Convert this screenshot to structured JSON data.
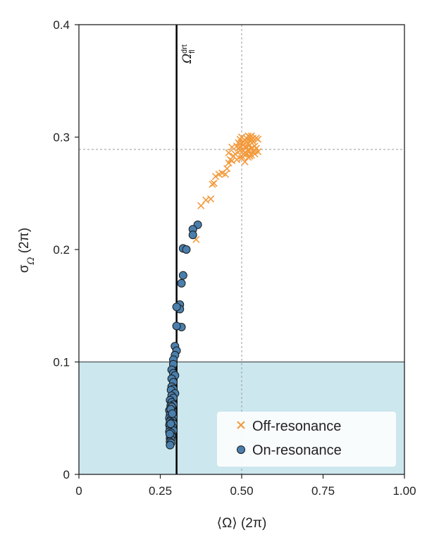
{
  "chart_data": {
    "type": "scatter",
    "xlabel": "⟨Ω⟩ (2π)",
    "ylabel_main": "σ",
    "ylabel_sub": "Ω",
    "ylabel_tail": " (2π)",
    "xlim": [
      0,
      1.0
    ],
    "ylim": [
      0,
      0.4
    ],
    "x_ticks": [
      0,
      0.25,
      0.5,
      0.75,
      1.0
    ],
    "x_tick_labels": [
      "0",
      "0.25",
      "0.50",
      "0.75",
      "1.00"
    ],
    "y_ticks": [
      0,
      0.1,
      0.2,
      0.3,
      0.4
    ],
    "y_tick_labels": [
      "0",
      "0.1",
      "0.2",
      "0.3",
      "0.4"
    ],
    "shaded_region": {
      "y_max": 0.1,
      "color": "#cce7ee"
    },
    "vertical_line": {
      "x": 0.3,
      "label_main": "Ω",
      "label_sup": "drt",
      "label_sub": "fl"
    },
    "reference_lines": {
      "x": 0.5,
      "y": 0.289
    },
    "legend_position": "bottom-right",
    "series": [
      {
        "name": "Off-resonance",
        "marker": "x",
        "color": "#f39a3c",
        "points": [
          [
            0.36,
            0.209
          ],
          [
            0.375,
            0.239
          ],
          [
            0.39,
            0.244
          ],
          [
            0.405,
            0.245
          ],
          [
            0.41,
            0.258
          ],
          [
            0.415,
            0.259
          ],
          [
            0.42,
            0.265
          ],
          [
            0.43,
            0.267
          ],
          [
            0.44,
            0.268
          ],
          [
            0.45,
            0.267
          ],
          [
            0.455,
            0.272
          ],
          [
            0.46,
            0.277
          ],
          [
            0.465,
            0.28
          ],
          [
            0.47,
            0.279
          ],
          [
            0.475,
            0.283
          ],
          [
            0.48,
            0.285
          ],
          [
            0.485,
            0.28
          ],
          [
            0.49,
            0.29
          ],
          [
            0.495,
            0.288
          ],
          [
            0.5,
            0.281
          ],
          [
            0.505,
            0.285
          ],
          [
            0.51,
            0.278
          ],
          [
            0.46,
            0.286
          ],
          [
            0.47,
            0.291
          ],
          [
            0.49,
            0.295
          ],
          [
            0.495,
            0.298
          ],
          [
            0.5,
            0.3
          ],
          [
            0.505,
            0.293
          ],
          [
            0.51,
            0.291
          ],
          [
            0.515,
            0.296
          ],
          [
            0.52,
            0.289
          ],
          [
            0.525,
            0.293
          ],
          [
            0.53,
            0.29
          ],
          [
            0.535,
            0.296
          ],
          [
            0.54,
            0.292
          ],
          [
            0.545,
            0.299
          ],
          [
            0.55,
            0.298
          ],
          [
            0.515,
            0.285
          ],
          [
            0.52,
            0.301
          ],
          [
            0.525,
            0.3
          ],
          [
            0.53,
            0.301
          ],
          [
            0.535,
            0.287
          ],
          [
            0.54,
            0.285
          ],
          [
            0.5,
            0.295
          ],
          [
            0.51,
            0.297
          ],
          [
            0.52,
            0.282
          ],
          [
            0.505,
            0.288
          ],
          [
            0.53,
            0.284
          ],
          [
            0.515,
            0.291
          ],
          [
            0.525,
            0.297
          ],
          [
            0.545,
            0.29
          ],
          [
            0.55,
            0.287
          ],
          [
            0.495,
            0.291
          ],
          [
            0.535,
            0.299
          ],
          [
            0.5,
            0.283
          ],
          [
            0.51,
            0.286
          ],
          [
            0.52,
            0.294
          ],
          [
            0.53,
            0.298
          ],
          [
            0.54,
            0.288
          ],
          [
            0.485,
            0.292
          ],
          [
            0.525,
            0.283
          ],
          [
            0.515,
            0.299
          ],
          [
            0.505,
            0.296
          ],
          [
            0.52,
            0.288
          ]
        ]
      },
      {
        "name": "On-resonance",
        "marker": "o",
        "color": "#4a7fad",
        "points": [
          [
            0.365,
            0.222
          ],
          [
            0.35,
            0.218
          ],
          [
            0.35,
            0.213
          ],
          [
            0.32,
            0.201
          ],
          [
            0.33,
            0.2
          ],
          [
            0.32,
            0.177
          ],
          [
            0.315,
            0.17
          ],
          [
            0.31,
            0.151
          ],
          [
            0.31,
            0.147
          ],
          [
            0.3,
            0.149
          ],
          [
            0.315,
            0.131
          ],
          [
            0.3,
            0.132
          ],
          [
            0.295,
            0.114
          ],
          [
            0.3,
            0.11
          ],
          [
            0.295,
            0.106
          ],
          [
            0.29,
            0.102
          ],
          [
            0.29,
            0.098
          ],
          [
            0.285,
            0.093
          ],
          [
            0.29,
            0.09
          ],
          [
            0.295,
            0.088
          ],
          [
            0.285,
            0.085
          ],
          [
            0.29,
            0.082
          ],
          [
            0.285,
            0.078
          ],
          [
            0.29,
            0.076
          ],
          [
            0.283,
            0.075
          ],
          [
            0.295,
            0.072
          ],
          [
            0.285,
            0.07
          ],
          [
            0.29,
            0.068
          ],
          [
            0.28,
            0.066
          ],
          [
            0.285,
            0.064
          ],
          [
            0.29,
            0.062
          ],
          [
            0.282,
            0.061
          ],
          [
            0.285,
            0.059
          ],
          [
            0.278,
            0.057
          ],
          [
            0.288,
            0.056
          ],
          [
            0.283,
            0.055
          ],
          [
            0.28,
            0.053
          ],
          [
            0.285,
            0.052
          ],
          [
            0.29,
            0.051
          ],
          [
            0.278,
            0.05
          ],
          [
            0.283,
            0.049
          ],
          [
            0.287,
            0.048
          ],
          [
            0.28,
            0.047
          ],
          [
            0.285,
            0.046
          ],
          [
            0.29,
            0.045
          ],
          [
            0.278,
            0.044
          ],
          [
            0.283,
            0.043
          ],
          [
            0.288,
            0.042
          ],
          [
            0.28,
            0.041
          ],
          [
            0.285,
            0.04
          ],
          [
            0.29,
            0.039
          ],
          [
            0.278,
            0.038
          ],
          [
            0.283,
            0.037
          ],
          [
            0.28,
            0.035
          ],
          [
            0.285,
            0.034
          ],
          [
            0.28,
            0.032
          ],
          [
            0.283,
            0.031
          ],
          [
            0.28,
            0.029
          ],
          [
            0.283,
            0.028
          ],
          [
            0.28,
            0.026
          ],
          [
            0.285,
            0.06
          ],
          [
            0.282,
            0.058
          ],
          [
            0.287,
            0.054
          ],
          [
            0.282,
            0.045
          ],
          [
            0.279,
            0.036
          ]
        ]
      }
    ]
  }
}
